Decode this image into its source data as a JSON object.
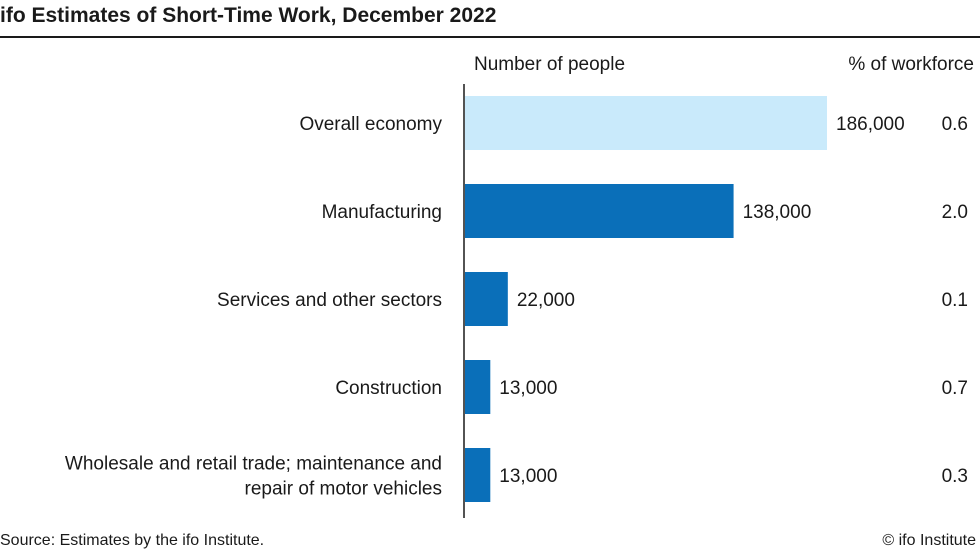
{
  "title": "ifo Estimates of Short-Time Work, December 2022",
  "source": "Source: Estimates by the ifo Institute.",
  "copyright": "© ifo Institute",
  "colors": {
    "highlight": "#c9eafb",
    "bar": "#0a6fb9",
    "axis": "#1a1a1a"
  },
  "chart_data": {
    "type": "bar",
    "orientation": "horizontal",
    "column_headers": {
      "people": "Number of people",
      "share": "% of workforce"
    },
    "categories": [
      [
        "Overall economy"
      ],
      [
        "Manufacturing"
      ],
      [
        "Services and other sectors"
      ],
      [
        "Construction"
      ],
      [
        "Wholesale and retail trade; maintenance and",
        "repair of motor vehicles"
      ]
    ],
    "values": [
      186000,
      138000,
      22000,
      13000,
      13000
    ],
    "value_labels": [
      "186,000",
      "138,000",
      "22,000",
      "13,000",
      "13,000"
    ],
    "share_labels": [
      "0.6",
      "2.0",
      "0.1",
      "0.7",
      "0.3"
    ],
    "highlight_index": 0,
    "xlim": [
      0,
      186000
    ]
  }
}
